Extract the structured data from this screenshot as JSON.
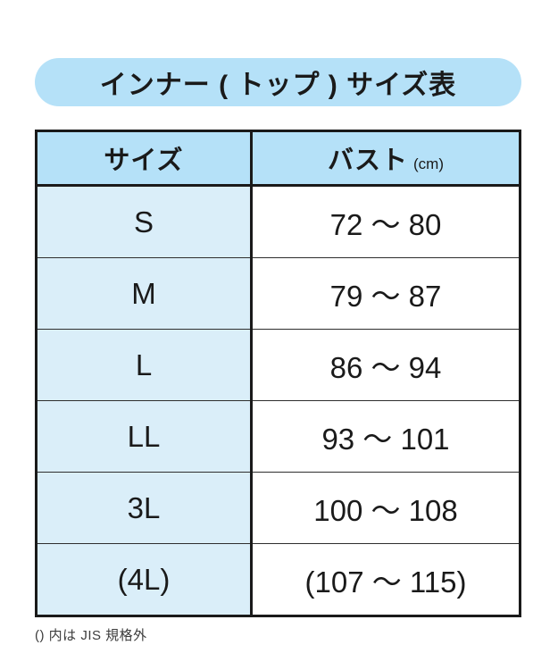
{
  "title": {
    "text": "インナー ( トップ ) サイズ表"
  },
  "table": {
    "headers": {
      "size": "サイズ",
      "bust": "バスト",
      "bust_unit": "(cm)"
    },
    "rows": [
      {
        "size": "S",
        "bust": "72 〜 80"
      },
      {
        "size": "M",
        "bust": "79 〜 87"
      },
      {
        "size": "L",
        "bust": "86 〜 94"
      },
      {
        "size": "LL",
        "bust": "93 〜 101"
      },
      {
        "size": "3L",
        "bust": "100 〜 108"
      },
      {
        "size": "(4L)",
        "bust": "(107 〜 115)"
      }
    ]
  },
  "footnote": "() 内は JIS 規格外",
  "colors": {
    "background": "#ffffff",
    "header_blue": "#b5e1f8",
    "row_blue": "#daeef9",
    "border_dark": "#1a1a1a",
    "row_line": "#2e2e2e",
    "text": "#1a1a1a",
    "footnote_text": "#3c3c3c"
  },
  "chart_data": {
    "type": "table",
    "title": "インナー ( トップ ) サイズ表",
    "columns": [
      "サイズ",
      "バスト (cm)"
    ],
    "rows": [
      [
        "S",
        "72 〜 80"
      ],
      [
        "M",
        "79 〜 87"
      ],
      [
        "L",
        "86 〜 94"
      ],
      [
        "LL",
        "93 〜 101"
      ],
      [
        "3L",
        "100 〜 108"
      ],
      [
        "(4L)",
        "(107 〜 115)"
      ]
    ],
    "bust_ranges_cm": [
      {
        "size": "S",
        "min": 72,
        "max": 80,
        "parenthesized": false
      },
      {
        "size": "M",
        "min": 79,
        "max": 87,
        "parenthesized": false
      },
      {
        "size": "L",
        "min": 86,
        "max": 94,
        "parenthesized": false
      },
      {
        "size": "LL",
        "min": 93,
        "max": 101,
        "parenthesized": false
      },
      {
        "size": "3L",
        "min": 100,
        "max": 108,
        "parenthesized": false
      },
      {
        "size": "(4L)",
        "min": 107,
        "max": 115,
        "parenthesized": true
      }
    ],
    "footnote": "() 内は JIS 規格外",
    "legend_position": "none",
    "grid": "table-borders"
  }
}
